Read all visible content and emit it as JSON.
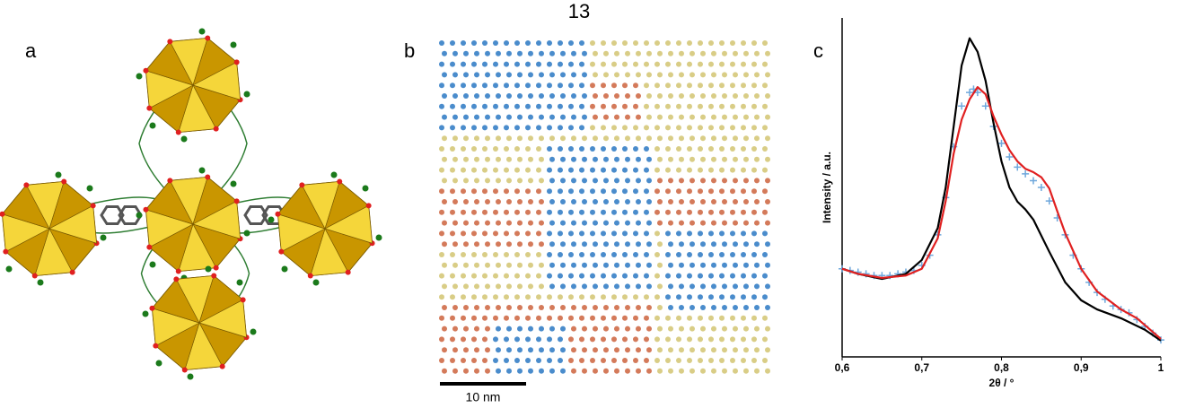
{
  "page_number": "13",
  "panel_labels": [
    "a",
    "b",
    "c"
  ],
  "scale_bar": "10 nm",
  "chart_data": {
    "type": "line",
    "xlabel": "2θ / °",
    "ylabel": "Intensity / a.u.",
    "xlim": [
      0.6,
      1.0
    ],
    "ylim": [
      0,
      100
    ],
    "xticks": [
      {
        "value": 0.6,
        "label": "0,6"
      },
      {
        "value": 0.7,
        "label": "0,7"
      },
      {
        "value": 0.8,
        "label": "0,8"
      },
      {
        "value": 0.9,
        "label": "0,9"
      },
      {
        "value": 1.0,
        "label": "1"
      }
    ],
    "series": [
      {
        "color": "#6fa8dc",
        "mode": "markers",
        "x": [
          0.6,
          0.61,
          0.62,
          0.63,
          0.64,
          0.65,
          0.66,
          0.67,
          0.68,
          0.69,
          0.7,
          0.71,
          0.72,
          0.73,
          0.74,
          0.75,
          0.76,
          0.765,
          0.77,
          0.78,
          0.79,
          0.8,
          0.81,
          0.82,
          0.83,
          0.84,
          0.85,
          0.86,
          0.87,
          0.88,
          0.89,
          0.9,
          0.91,
          0.92,
          0.93,
          0.94,
          0.95,
          0.96,
          0.97,
          0.98,
          0.99,
          1.0
        ],
        "values": [
          26,
          25.5,
          25,
          24.5,
          24,
          24,
          24,
          24.5,
          25,
          25.5,
          27,
          30,
          36,
          47,
          62,
          74,
          78,
          79,
          78,
          74,
          68,
          63,
          59,
          56,
          54,
          52,
          50,
          46,
          41,
          36,
          30,
          26,
          22,
          19,
          17,
          15,
          14,
          13,
          11,
          9,
          7,
          5
        ]
      },
      {
        "color": "#000000",
        "mode": "line",
        "x": [
          0.6,
          0.62,
          0.65,
          0.68,
          0.7,
          0.72,
          0.73,
          0.74,
          0.75,
          0.76,
          0.77,
          0.78,
          0.79,
          0.8,
          0.81,
          0.82,
          0.83,
          0.84,
          0.86,
          0.88,
          0.9,
          0.92,
          0.95,
          0.98,
          1.0
        ],
        "values": [
          26,
          24.5,
          23,
          24.5,
          28.6,
          38,
          50,
          68,
          86,
          94,
          90,
          81.5,
          69,
          57.7,
          50,
          45.8,
          43.5,
          40.5,
          31,
          22,
          16.7,
          14,
          11.4,
          8,
          4.8
        ]
      },
      {
        "color": "#e02020",
        "mode": "line",
        "x": [
          0.6,
          0.62,
          0.65,
          0.68,
          0.7,
          0.72,
          0.73,
          0.74,
          0.75,
          0.76,
          0.77,
          0.78,
          0.79,
          0.8,
          0.81,
          0.82,
          0.83,
          0.84,
          0.85,
          0.86,
          0.87,
          0.88,
          0.9,
          0.92,
          0.95,
          0.97,
          1.0
        ],
        "values": [
          26,
          24.5,
          23.3,
          24,
          26,
          35,
          46,
          60,
          70,
          76,
          79.6,
          77.5,
          71,
          65.6,
          61,
          57.7,
          55.5,
          54.5,
          53,
          49.7,
          43,
          36.5,
          26,
          19.3,
          14,
          11.4,
          5.3
        ]
      }
    ]
  }
}
